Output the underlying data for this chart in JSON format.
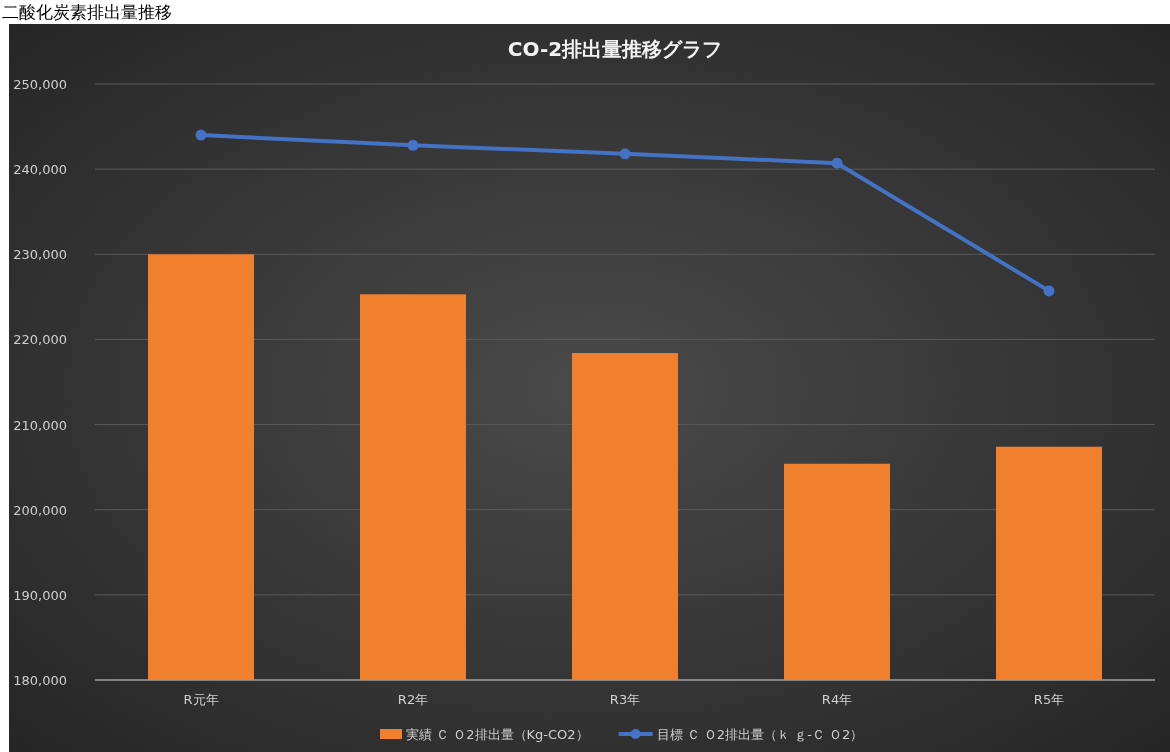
{
  "chart_data": {
    "type": "bar",
    "title": "CO-2排出量推移グラフ",
    "annotations": [
      "二酸化炭素排出量推移"
    ],
    "categories": [
      "R元年",
      "R2年",
      "R3年",
      "R4年",
      "R5年"
    ],
    "series": [
      {
        "name": "実績 Ｃ Ｏ2排出量（Kg-CO2）",
        "color": "#f07f2e",
        "values": [
          230000,
          225300,
          218400,
          205400,
          207400
        ]
      },
      {
        "name": "目標 Ｃ Ｏ2排出量（ｋ ｇ-Ｃ Ｏ2）",
        "type": "line",
        "color": "#4472c4",
        "marker": "circle",
        "values": [
          244000,
          242800,
          241800,
          240700,
          225700
        ]
      }
    ],
    "ylim": [
      180000,
      250000
    ],
    "yticks": [
      {
        "value": 180000,
        "label": "180,000"
      },
      {
        "value": 190000,
        "label": "190,000"
      },
      {
        "value": 200000,
        "label": "200,000"
      },
      {
        "value": 210000,
        "label": "210,000"
      },
      {
        "value": 220000,
        "label": "220,000"
      },
      {
        "value": 230000,
        "label": "230,000"
      },
      {
        "value": 240000,
        "label": "240,000"
      },
      {
        "value": 250000,
        "label": "250,000"
      }
    ],
    "grid": "y",
    "legend": "bottom"
  }
}
